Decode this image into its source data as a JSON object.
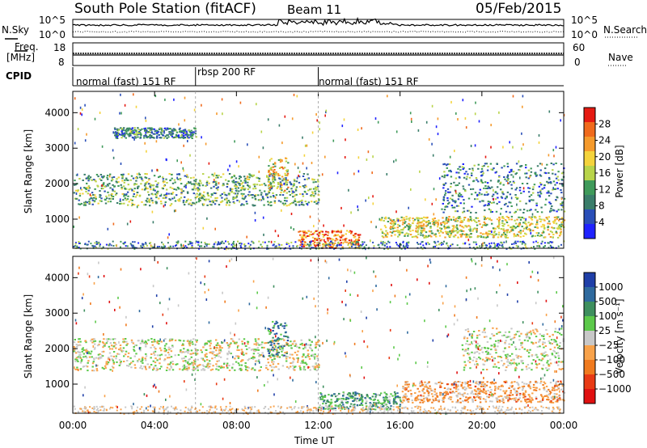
{
  "header": {
    "station": "South Pole Station (fitACF)",
    "beam": "Beam 11",
    "date": "05/Feb/2015"
  },
  "aux_panels": {
    "nsky_label": "N.Sky",
    "nsearch_label": "N.Search",
    "noise_ticks": [
      "10^5",
      "10^0"
    ],
    "freq_label_1": "Freq.",
    "freq_label_2": "[MHz]",
    "freq_ticks": [
      "18",
      "8"
    ],
    "nave_label": "Nave",
    "nave_ticks": [
      "60",
      "0"
    ],
    "cpid_label": "CPID"
  },
  "cpid_segments": [
    {
      "label": "normal (fast) 151 RF",
      "start_hour": 0,
      "end_hour": 6
    },
    {
      "label": "rbsp 200 RF",
      "start_hour": 6,
      "end_hour": 12
    },
    {
      "label": "normal (fast) 151 RF",
      "start_hour": 12,
      "end_hour": 24
    }
  ],
  "colors": {
    "power_scale": [
      "#1f22ff",
      "#2a4fb8",
      "#3a7d6a",
      "#3f9a5a",
      "#b8d44a",
      "#f4d33c",
      "#f59a2c",
      "#f06a1c",
      "#e51a12"
    ],
    "velocity_scale": [
      "#1f3fa8",
      "#2f6a9e",
      "#3e8f5e",
      "#5cc94a",
      "#c8c8c8",
      "#f8a24a",
      "#f07a1e",
      "#e83a14",
      "#e01010"
    ]
  },
  "chart_data": [
    {
      "type": "heatmap",
      "title": "",
      "xlabel": "",
      "ylabel": "Slant Range [km]",
      "xlim": [
        0,
        24
      ],
      "ylim": [
        180,
        4600
      ],
      "x_ticks": [
        "00:00",
        "04:00",
        "08:00",
        "12:00",
        "16:00",
        "20:00",
        "00:00"
      ],
      "y_ticks": [
        "1000",
        "2000",
        "3000",
        "4000"
      ],
      "colorbar_label": "Power [dB]",
      "colorbar_ticks": [
        "28",
        "24",
        "20",
        "16",
        "12",
        "8",
        "4"
      ],
      "colorbar_range": [
        0,
        32
      ],
      "echo_bands": [
        {
          "t_start": 0.0,
          "t_end": 12.0,
          "r_low": 1400,
          "r_high": 2300,
          "level": 12
        },
        {
          "t_start": 2.0,
          "t_end": 6.0,
          "r_low": 3300,
          "r_high": 3600,
          "level": 8
        },
        {
          "t_start": 9.5,
          "t_end": 10.5,
          "r_low": 1800,
          "r_high": 2800,
          "level": 20
        },
        {
          "t_start": 11.0,
          "t_end": 14.0,
          "r_low": 200,
          "r_high": 700,
          "level": 26
        },
        {
          "t_start": 15.0,
          "t_end": 24.0,
          "r_low": 500,
          "r_high": 1100,
          "level": 18
        },
        {
          "t_start": 18.0,
          "t_end": 24.0,
          "r_low": 1200,
          "r_high": 2600,
          "level": 8
        }
      ]
    },
    {
      "type": "heatmap",
      "title": "",
      "xlabel": "Time UT",
      "ylabel": "Slant Range [km]",
      "xlim": [
        0,
        24
      ],
      "ylim": [
        180,
        4600
      ],
      "x_ticks": [
        "00:00",
        "04:00",
        "08:00",
        "12:00",
        "16:00",
        "20:00",
        "00:00"
      ],
      "y_ticks": [
        "1000",
        "2000",
        "3000",
        "4000"
      ],
      "colorbar_label": "Velocity [m s⁻¹]",
      "colorbar_ticks": [
        "1000",
        "500",
        "100",
        "25",
        "−25",
        "−100",
        "−500",
        "−1000"
      ],
      "colorbar_range": [
        -1000,
        1000
      ],
      "echo_bands": [
        {
          "t_start": 0.0,
          "t_end": 12.0,
          "r_low": 1400,
          "r_high": 2300,
          "velocity": 0
        },
        {
          "t_start": 9.5,
          "t_end": 10.5,
          "r_low": 1800,
          "r_high": 2800,
          "velocity": 600
        },
        {
          "t_start": 12.0,
          "t_end": 16.0,
          "r_low": 300,
          "r_high": 800,
          "velocity": 400
        },
        {
          "t_start": 16.0,
          "t_end": 24.0,
          "r_low": 500,
          "r_high": 1100,
          "velocity": -300
        },
        {
          "t_start": 19.0,
          "t_end": 24.0,
          "r_low": 1400,
          "r_high": 2600,
          "velocity": 0
        }
      ]
    }
  ]
}
